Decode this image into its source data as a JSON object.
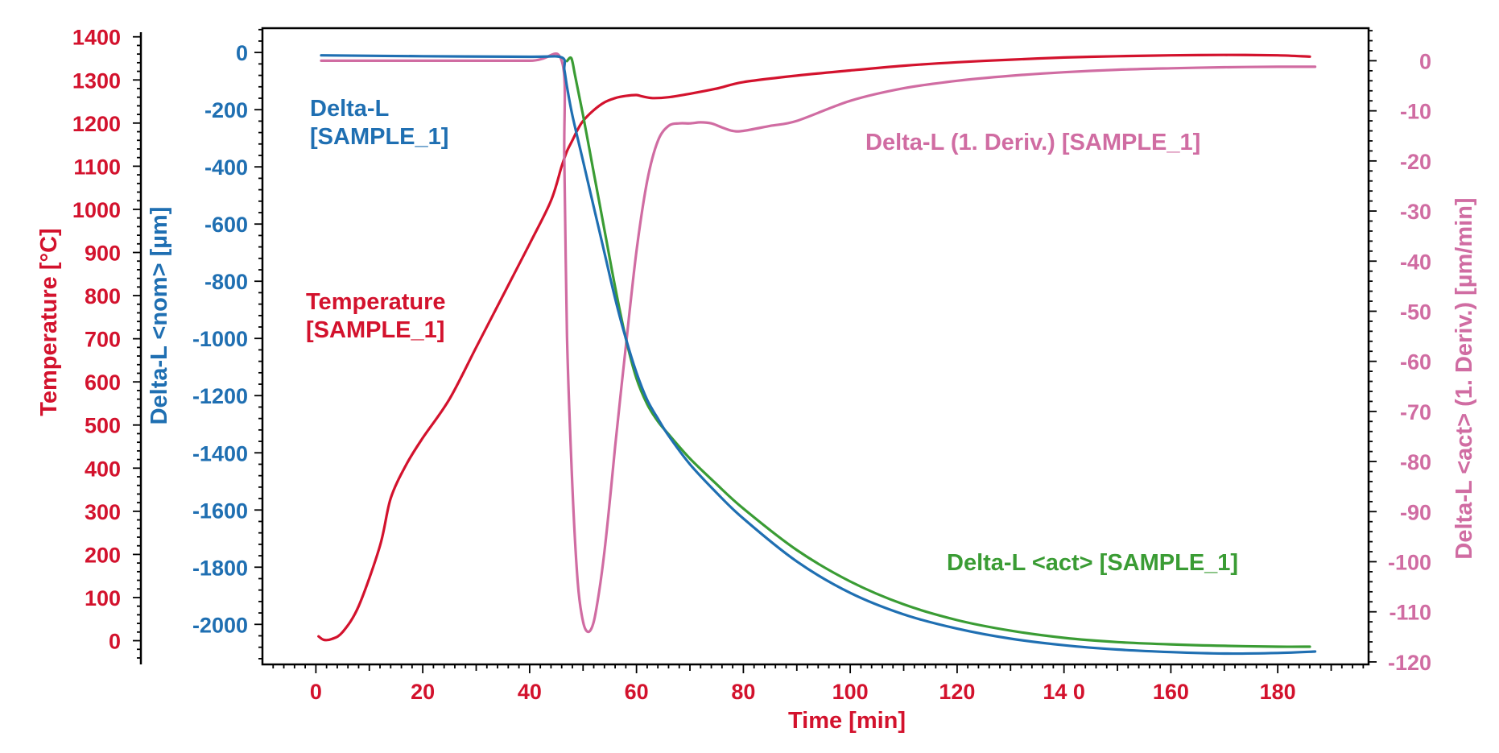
{
  "colors": {
    "temperature": "#d3122d",
    "delta_nom": "#1f6fb2",
    "delta_act": "#3a9c34",
    "deriv": "#d06ca2",
    "axis": "#000000"
  },
  "chart_data": {
    "type": "line",
    "grid": false,
    "x_axis": {
      "label": "Time [min]",
      "range": [
        -10,
        197
      ],
      "tick_labels": [
        "0",
        "20",
        "40",
        "60",
        "80",
        "100",
        "120",
        "14 0",
        "160",
        "180"
      ],
      "tick_values": [
        0,
        20,
        40,
        60,
        80,
        100,
        120,
        140,
        160,
        180
      ]
    },
    "y_axes": {
      "temperature": {
        "label": "Temperature [°C]",
        "range": [
          -55,
          1420
        ],
        "ticks": [
          0,
          100,
          200,
          300,
          400,
          500,
          600,
          700,
          800,
          900,
          1000,
          1100,
          1200,
          1300,
          1400
        ]
      },
      "delta_nom": {
        "label": "Delta-L <nom> [µm]",
        "range": [
          -2140,
          85
        ],
        "ticks": [
          0,
          -200,
          -400,
          -600,
          -800,
          -1000,
          -1200,
          -1400,
          -1600,
          -1800,
          -2000
        ]
      },
      "deriv": {
        "label": "Delta-L <act> (1. Deriv.) [µm/min]",
        "range": [
          -120.5,
          6.5
        ],
        "ticks": [
          0,
          -10,
          -20,
          -30,
          -40,
          -50,
          -60,
          -70,
          -80,
          -90,
          -100,
          -110,
          -120
        ]
      }
    },
    "series": [
      {
        "name": "Temperature [SAMPLE_1]",
        "axis": "temperature",
        "x": [
          0.5,
          1.5,
          3,
          5,
          8,
          12,
          14,
          17,
          20,
          25,
          30,
          35,
          40,
          44,
          46,
          47,
          48,
          49,
          50,
          52,
          54,
          56,
          58,
          60,
          61,
          63,
          66,
          70,
          75,
          80,
          90,
          100,
          110,
          120,
          130,
          140,
          150,
          160,
          170,
          180,
          186
        ],
        "y": [
          10,
          2,
          4,
          20,
          80,
          220,
          330,
          410,
          470,
          560,
          680,
          800,
          920,
          1020,
          1100,
          1135,
          1160,
          1185,
          1205,
          1230,
          1248,
          1258,
          1263,
          1265,
          1262,
          1258,
          1260,
          1268,
          1280,
          1295,
          1310,
          1322,
          1333,
          1341,
          1347,
          1352,
          1355,
          1357,
          1358,
          1357,
          1354
        ]
      },
      {
        "name": "Delta-L [SAMPLE_1]",
        "axis": "delta_nom",
        "x": [
          1,
          20,
          40,
          46,
          46.5,
          47,
          48,
          50,
          52,
          54,
          56,
          58,
          60,
          62,
          64,
          66,
          70,
          75,
          80,
          90,
          100,
          110,
          120,
          130,
          140,
          150,
          160,
          170,
          180,
          187
        ],
        "y": [
          -10,
          -13,
          -15,
          -17,
          -60,
          -120,
          -220,
          -380,
          -540,
          -700,
          -860,
          -1000,
          -1120,
          -1215,
          -1280,
          -1340,
          -1440,
          -1540,
          -1630,
          -1780,
          -1890,
          -1965,
          -2015,
          -2050,
          -2073,
          -2088,
          -2097,
          -2102,
          -2100,
          -2095
        ]
      },
      {
        "name": "Delta-L <act> [SAMPLE_1]",
        "axis": "delta_nom",
        "x": [
          47,
          47.8,
          48.5,
          50,
          52,
          54,
          56,
          58,
          60,
          62,
          64,
          66,
          70,
          75,
          80,
          90,
          100,
          110,
          120,
          130,
          140,
          150,
          160,
          170,
          180,
          186
        ],
        "y": [
          -30,
          -20,
          -80,
          -220,
          -420,
          -620,
          -820,
          -1000,
          -1140,
          -1230,
          -1290,
          -1335,
          -1420,
          -1510,
          -1595,
          -1740,
          -1850,
          -1930,
          -1985,
          -2022,
          -2047,
          -2062,
          -2070,
          -2075,
          -2078,
          -2078
        ]
      },
      {
        "name": "Delta-L (1. Deriv.) [SAMPLE_1]",
        "axis": "deriv",
        "x": [
          1,
          20,
          40,
          46,
          46.5,
          47,
          48,
          49,
          50,
          51,
          52,
          53,
          54,
          55,
          56,
          58,
          60,
          62,
          64,
          66,
          68,
          70,
          72,
          74,
          76,
          78,
          80,
          85,
          90,
          100,
          110,
          120,
          130,
          140,
          150,
          160,
          170,
          180,
          187
        ],
        "y": [
          0,
          0,
          0,
          0,
          -20,
          -55,
          -85,
          -104,
          -112,
          -114,
          -112,
          -106,
          -98,
          -88,
          -77,
          -57,
          -38,
          -24,
          -16,
          -13,
          -12.5,
          -12.5,
          -12.3,
          -12.5,
          -13.3,
          -14,
          -14,
          -13,
          -12,
          -8,
          -5.5,
          -4,
          -3,
          -2.3,
          -1.8,
          -1.5,
          -1.3,
          -1.2,
          -1.2
        ]
      }
    ],
    "annotations": [
      {
        "series": "temperature",
        "lines": [
          "Temperature",
          "[SAMPLE_1]"
        ]
      },
      {
        "series": "delta_nom",
        "lines": [
          "Delta-L",
          "[SAMPLE_1]"
        ]
      },
      {
        "series": "deriv",
        "lines": [
          "Delta-L (1. Deriv.) [SAMPLE_1]"
        ]
      },
      {
        "series": "delta_act",
        "lines": [
          "Delta-L <act> [SAMPLE_1]"
        ]
      }
    ]
  }
}
